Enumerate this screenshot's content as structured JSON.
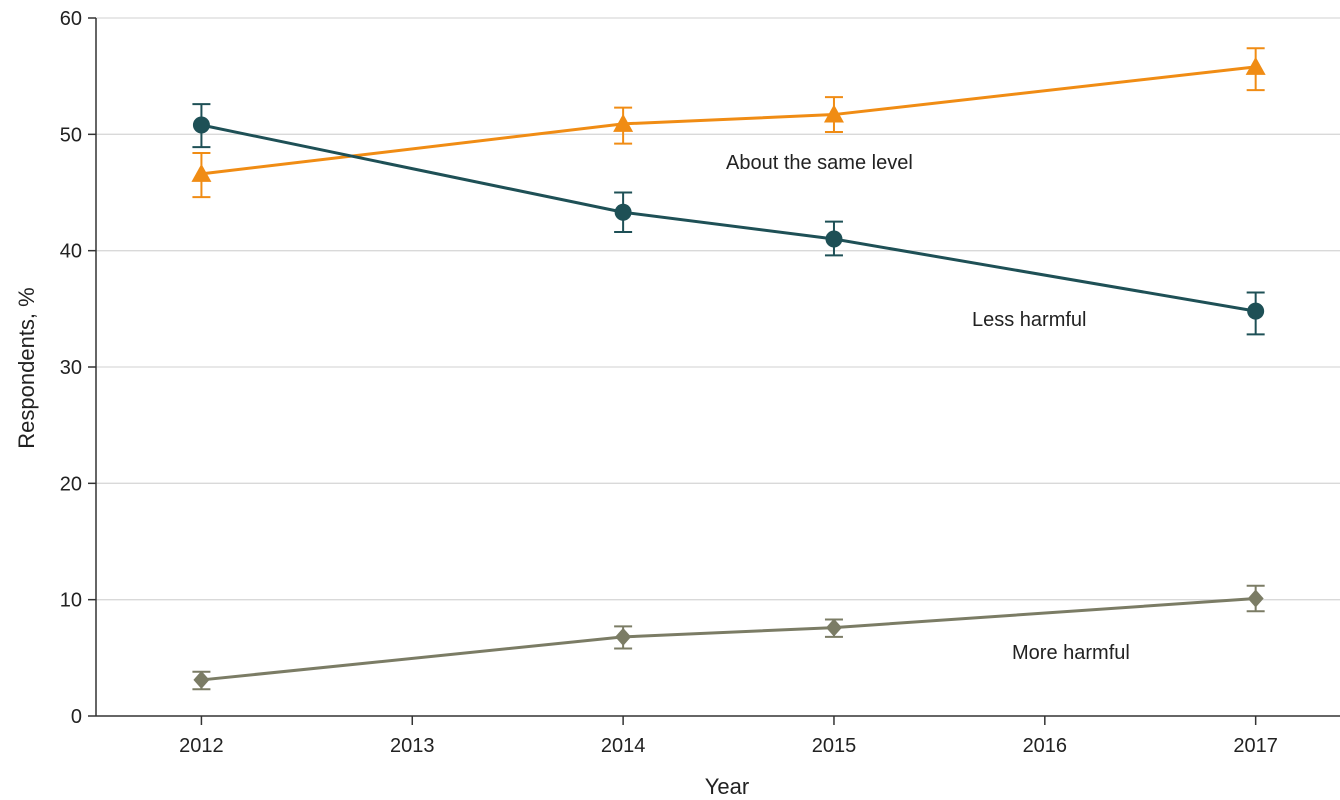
{
  "chart_data": {
    "type": "line",
    "xlabel": "Year",
    "ylabel": "Respondents, %",
    "x_ticks": [
      "2012",
      "2013",
      "2014",
      "2015",
      "2016",
      "2017"
    ],
    "y_ticks": [
      "0",
      "10",
      "20",
      "30",
      "40",
      "50",
      "60"
    ],
    "xlim": [
      2011.5,
      2017.4
    ],
    "ylim": [
      0,
      60
    ],
    "grid": "horizontal",
    "legend": "none (series labeled inline)",
    "series": [
      {
        "name": "About the same level",
        "color": "#f08c14",
        "marker": "triangle",
        "x": [
          2012,
          2014,
          2015,
          2017
        ],
        "y": [
          46.6,
          50.9,
          51.7,
          55.8
        ],
        "ci_low": [
          44.6,
          49.2,
          50.2,
          53.8
        ],
        "ci_high": [
          48.4,
          52.3,
          53.2,
          57.4
        ]
      },
      {
        "name": "Less harmful",
        "color": "#1e5056",
        "marker": "circle",
        "x": [
          2012,
          2014,
          2015,
          2017
        ],
        "y": [
          50.8,
          43.3,
          41.0,
          34.8
        ],
        "ci_low": [
          48.9,
          41.6,
          39.6,
          32.8
        ],
        "ci_high": [
          52.6,
          45.0,
          42.5,
          36.4
        ]
      },
      {
        "name": "More harmful",
        "color": "#7b7c65",
        "marker": "diamond",
        "x": [
          2012,
          2014,
          2015,
          2017
        ],
        "y": [
          3.1,
          6.8,
          7.6,
          10.1
        ],
        "ci_low": [
          2.3,
          5.8,
          6.8,
          9.0
        ],
        "ci_high": [
          3.8,
          7.7,
          8.3,
          11.2
        ]
      }
    ]
  }
}
